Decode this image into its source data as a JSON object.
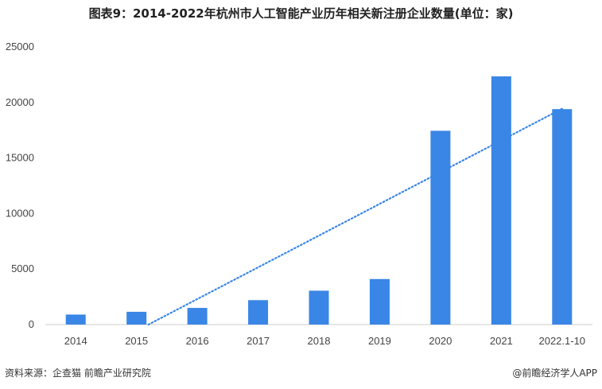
{
  "header": {
    "title": "图表9：2014-2022年杭州市人工智能产业历年相关新注册企业数量(单位：家)"
  },
  "footer": {
    "source": "资料来源：企查猫 前瞻产业研究院",
    "brand": "@前瞻经济学人APP"
  },
  "colors": {
    "bar": "#3a86e6",
    "trend": "#3a86e6",
    "axis_text": "#444444"
  },
  "chart_data": {
    "type": "bar",
    "title": "图表9：2014-2022年杭州市人工智能产业历年相关新注册企业数量(单位：家)",
    "categories": [
      "2014",
      "2015",
      "2016",
      "2017",
      "2018",
      "2019",
      "2020",
      "2021",
      "2022.1-10"
    ],
    "values": [
      900,
      1150,
      1500,
      2200,
      3050,
      4100,
      17450,
      22350,
      19400
    ],
    "ylim": [
      0,
      25000
    ],
    "yticks": [
      "0",
      "5000",
      "10000",
      "15000",
      "20000",
      "25000"
    ],
    "trendline": {
      "type": "linear",
      "style": "dotted"
    },
    "grid": false,
    "legend": "none"
  }
}
